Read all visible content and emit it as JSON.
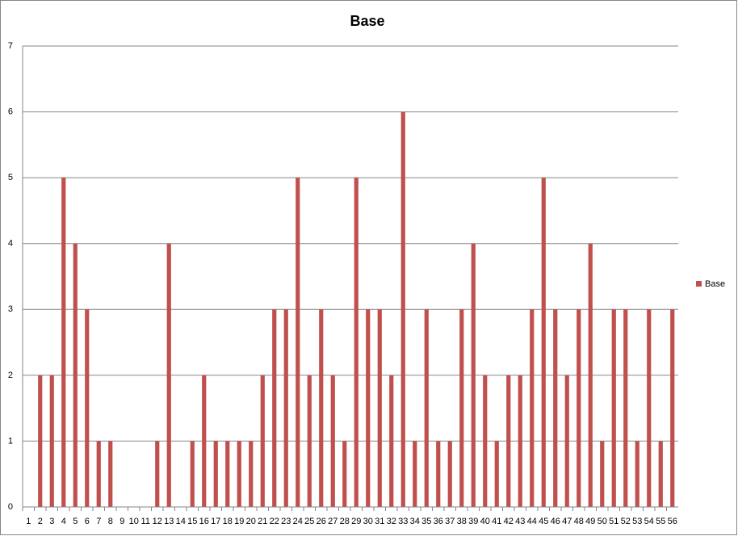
{
  "chart_data": {
    "type": "bar",
    "title": "Base",
    "categories": [
      "1",
      "2",
      "3",
      "4",
      "5",
      "6",
      "7",
      "8",
      "9",
      "10",
      "11",
      "12",
      "13",
      "14",
      "15",
      "16",
      "17",
      "18",
      "19",
      "20",
      "21",
      "22",
      "23",
      "24",
      "25",
      "26",
      "27",
      "28",
      "29",
      "30",
      "31",
      "32",
      "33",
      "34",
      "35",
      "36",
      "37",
      "38",
      "39",
      "40",
      "41",
      "42",
      "43",
      "44",
      "45",
      "46",
      "47",
      "48",
      "49",
      "50",
      "51",
      "52",
      "53",
      "54",
      "55",
      "56"
    ],
    "series": [
      {
        "name": "Base",
        "color": "#c0504d",
        "values": [
          0,
          2,
          2,
          5,
          4,
          3,
          1,
          1,
          0,
          0,
          0,
          1,
          4,
          0,
          1,
          2,
          1,
          1,
          1,
          1,
          2,
          3,
          3,
          5,
          2,
          3,
          2,
          1,
          5,
          3,
          3,
          2,
          6,
          1,
          3,
          1,
          1,
          3,
          4,
          2,
          1,
          2,
          2,
          3,
          5,
          3,
          2,
          3,
          4,
          1,
          3,
          3,
          1,
          3,
          1,
          3
        ]
      }
    ],
    "ylim": [
      0,
      7
    ],
    "yticks": [
      0,
      1,
      2,
      3,
      4,
      5,
      6,
      7
    ],
    "grid": true,
    "legend": "right"
  }
}
